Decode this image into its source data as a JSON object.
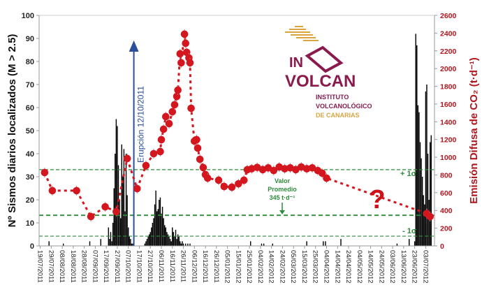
{
  "chart_data": {
    "type": "bar+scatter-line",
    "left_axis": {
      "label": "Nº Sismos diarios localizados (M > 2.5)",
      "ylim": [
        0,
        100
      ],
      "ticks": [
        0,
        10,
        20,
        30,
        40,
        50,
        60,
        70,
        80,
        90,
        100
      ]
    },
    "right_axis": {
      "label": "Emisión Difusa de CO₂ (t·d⁻¹)",
      "ylim": [
        0,
        2600
      ],
      "ticks": [
        0,
        200,
        400,
        600,
        800,
        1000,
        1200,
        1400,
        1600,
        1800,
        2000,
        2200,
        2400,
        2600
      ]
    },
    "xlim": [
      "2011-07-18",
      "2012-07-11"
    ],
    "x_tick_labels": [
      "19/07/2011",
      "29/07/2011",
      "08/08/2011",
      "18/08/2011",
      "28/08/2011",
      "07/09/2011",
      "17/09/2011",
      "27/09/2011",
      "07/10/2011",
      "17/10/2011",
      "27/10/2011",
      "06/11/2011",
      "16/11/2011",
      "26/11/2011",
      "06/12/2011",
      "16/12/2011",
      "26/12/2011",
      "05/01/2012",
      "15/01/2012",
      "25/01/2012",
      "04/02/2012",
      "14/02/2012",
      "24/02/2012",
      "05/03/2012",
      "15/03/2012",
      "25/03/2012",
      "04/04/2012",
      "14/04/2012",
      "24/04/2012",
      "04/05/2012",
      "14/05/2012",
      "24/05/2012",
      "03/06/2012",
      "13/06/2012",
      "23/06/2012",
      "03/07/2012"
    ],
    "grid": false,
    "earthquakes": {
      "axis": "left",
      "color": "#000000",
      "points": [
        [
          "2011-07-27",
          2
        ],
        [
          "2011-08-09",
          1
        ],
        [
          "2011-09-02",
          2
        ],
        [
          "2011-09-12",
          3
        ],
        [
          "2011-09-19",
          8
        ],
        [
          "2011-09-20",
          3
        ],
        [
          "2011-09-21",
          6
        ],
        [
          "2011-09-22",
          2
        ],
        [
          "2011-09-23",
          10
        ],
        [
          "2011-09-24",
          25
        ],
        [
          "2011-09-25",
          40
        ],
        [
          "2011-09-26",
          55
        ],
        [
          "2011-09-27",
          52
        ],
        [
          "2011-09-28",
          35
        ],
        [
          "2011-09-29",
          20
        ],
        [
          "2011-09-30",
          12
        ],
        [
          "2011-10-01",
          44
        ],
        [
          "2011-10-02",
          30
        ],
        [
          "2011-10-03",
          42
        ],
        [
          "2011-10-04",
          15
        ],
        [
          "2011-10-05",
          40
        ],
        [
          "2011-10-06",
          22
        ],
        [
          "2011-10-07",
          8
        ],
        [
          "2011-10-08",
          4
        ],
        [
          "2011-10-09",
          3
        ],
        [
          "2011-10-10",
          1
        ],
        [
          "2011-10-11",
          1
        ],
        [
          "2011-10-22",
          1
        ],
        [
          "2011-10-23",
          2
        ],
        [
          "2011-10-24",
          3
        ],
        [
          "2011-10-25",
          4
        ],
        [
          "2011-10-26",
          5
        ],
        [
          "2011-10-27",
          6
        ],
        [
          "2011-10-28",
          8
        ],
        [
          "2011-10-29",
          10
        ],
        [
          "2011-10-30",
          12
        ],
        [
          "2011-10-31",
          18
        ],
        [
          "2011-11-01",
          24
        ],
        [
          "2011-11-02",
          15
        ],
        [
          "2011-11-03",
          16
        ],
        [
          "2011-11-04",
          20
        ],
        [
          "2011-11-05",
          21
        ],
        [
          "2011-11-06",
          14
        ],
        [
          "2011-11-07",
          17
        ],
        [
          "2011-11-08",
          12
        ],
        [
          "2011-11-09",
          9
        ],
        [
          "2011-11-10",
          8
        ],
        [
          "2011-11-11",
          6
        ],
        [
          "2011-11-12",
          5
        ],
        [
          "2011-11-13",
          4
        ],
        [
          "2011-11-14",
          3
        ],
        [
          "2011-11-15",
          2
        ],
        [
          "2011-11-16",
          8
        ],
        [
          "2011-11-17",
          6
        ],
        [
          "2011-11-18",
          4
        ],
        [
          "2011-11-19",
          7
        ],
        [
          "2011-11-20",
          3
        ],
        [
          "2011-11-21",
          5
        ],
        [
          "2011-11-22",
          4
        ],
        [
          "2011-11-23",
          2
        ],
        [
          "2011-11-24",
          1
        ],
        [
          "2011-11-25",
          2
        ],
        [
          "2011-11-26",
          1
        ],
        [
          "2011-11-28",
          1
        ],
        [
          "2011-11-30",
          1
        ],
        [
          "2011-12-02",
          1
        ],
        [
          "2012-01-26",
          2
        ],
        [
          "2012-02-05",
          1
        ],
        [
          "2012-02-07",
          1
        ],
        [
          "2012-02-15",
          1
        ],
        [
          "2012-03-17",
          2
        ],
        [
          "2012-04-01",
          2
        ],
        [
          "2012-04-03",
          2
        ],
        [
          "2012-04-17",
          3
        ],
        [
          "2012-06-07",
          1
        ],
        [
          "2012-06-18",
          3
        ],
        [
          "2012-06-23",
          2
        ],
        [
          "2012-06-24",
          92
        ],
        [
          "2012-06-25",
          87
        ],
        [
          "2012-06-26",
          61
        ],
        [
          "2012-06-27",
          58
        ],
        [
          "2012-06-28",
          45
        ],
        [
          "2012-06-29",
          38
        ],
        [
          "2012-06-30",
          30
        ],
        [
          "2012-07-01",
          22
        ],
        [
          "2012-07-02",
          18
        ],
        [
          "2012-07-03",
          67
        ],
        [
          "2012-07-04",
          70
        ],
        [
          "2012-07-05",
          40
        ],
        [
          "2012-07-06",
          20
        ],
        [
          "2012-07-07",
          45
        ],
        [
          "2012-07-08",
          48
        ]
      ]
    },
    "co2": {
      "axis": "right",
      "color": "#d4161f",
      "points": [
        [
          "2011-07-23",
          827
        ],
        [
          "2011-07-30",
          623
        ],
        [
          "2011-08-21",
          623
        ],
        [
          "2011-09-03",
          331
        ],
        [
          "2011-09-16",
          441
        ],
        [
          "2011-09-26",
          386
        ],
        [
          "2011-10-06",
          985
        ],
        [
          "2011-10-15",
          646
        ],
        [
          "2011-10-23",
          906
        ],
        [
          "2011-10-30",
          1040
        ],
        [
          "2011-11-05",
          1064
        ],
        [
          "2011-11-06",
          1198
        ],
        [
          "2011-11-08",
          1316
        ],
        [
          "2011-11-10",
          1458
        ],
        [
          "2011-11-13",
          1379
        ],
        [
          "2011-11-16",
          1513
        ],
        [
          "2011-11-18",
          1592
        ],
        [
          "2011-11-20",
          1686
        ],
        [
          "2011-11-21",
          1757
        ],
        [
          "2011-11-23",
          2167
        ],
        [
          "2011-11-24",
          2065
        ],
        [
          "2011-11-27",
          2388
        ],
        [
          "2011-11-28",
          2285
        ],
        [
          "2011-11-29",
          2183
        ],
        [
          "2011-12-01",
          2120
        ],
        [
          "2011-12-02",
          2065
        ],
        [
          "2011-12-03",
          1552
        ],
        [
          "2011-12-06",
          1182
        ],
        [
          "2011-12-08",
          1198
        ],
        [
          "2011-12-09",
          1103
        ],
        [
          "2011-12-11",
          977
        ],
        [
          "2011-12-14",
          883
        ],
        [
          "2011-12-16",
          804
        ],
        [
          "2011-12-18",
          764
        ],
        [
          "2011-12-28",
          741
        ],
        [
          "2012-01-02",
          670
        ],
        [
          "2012-01-09",
          662
        ],
        [
          "2012-01-15",
          701
        ],
        [
          "2012-01-20",
          741
        ],
        [
          "2012-01-23",
          859
        ],
        [
          "2012-01-27",
          870
        ],
        [
          "2012-02-01",
          885
        ],
        [
          "2012-02-06",
          860
        ],
        [
          "2012-02-11",
          880
        ],
        [
          "2012-02-16",
          850
        ],
        [
          "2012-02-21",
          890
        ],
        [
          "2012-02-26",
          870
        ],
        [
          "2012-03-02",
          880
        ],
        [
          "2012-03-07",
          860
        ],
        [
          "2012-03-12",
          890
        ],
        [
          "2012-03-17",
          870
        ],
        [
          "2012-03-22",
          880
        ],
        [
          "2012-03-27",
          850
        ],
        [
          "2012-03-31",
          820
        ],
        [
          "2012-04-04",
          764
        ],
        [
          "2012-07-04",
          365
        ],
        [
          "2012-07-07",
          331
        ]
      ]
    },
    "reference_lines": {
      "color": "#2e8b3a",
      "mean": {
        "value": 345,
        "label": "Valor Promedio 345 t·d⁻¹",
        "label_lines": [
          "Valor",
          "Promedio",
          "345 t·d⁻¹"
        ]
      },
      "plus_sigma": {
        "value": 860,
        "label": "+ 1σ"
      },
      "minus_sigma": {
        "value": 110,
        "label": "- 1σ"
      }
    },
    "annotations": {
      "eruption": {
        "date": "2011-10-12",
        "label": "Erupción 12/10/2011",
        "color": "#2b4f9a"
      },
      "question_mark": "?"
    }
  },
  "logo": {
    "line1": "IN",
    "line2": "VOLCAN",
    "line3": "INSTITUTO",
    "line4": "VOLCANOLÓGICO",
    "line5": "DE CANARIAS",
    "colors": {
      "primary": "#8a1a4e",
      "secondary": "#d9a441"
    }
  }
}
